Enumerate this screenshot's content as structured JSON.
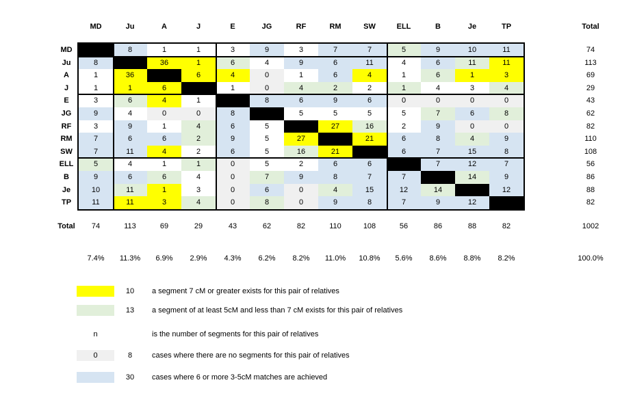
{
  "page": {
    "background": "#ffffff"
  },
  "chart_data": {
    "type": "heatmap",
    "title": "",
    "total_label": "Total",
    "labels": [
      "MD",
      "Ju",
      "A",
      "J",
      "E",
      "JG",
      "RF",
      "RM",
      "SW",
      "ELL",
      "B",
      "Je",
      "TP"
    ],
    "values": [
      [
        "",
        8,
        1,
        1,
        3,
        9,
        3,
        7,
        7,
        5,
        9,
        10,
        11
      ],
      [
        8,
        "",
        36,
        1,
        6,
        4,
        9,
        6,
        11,
        4,
        6,
        11,
        11
      ],
      [
        1,
        36,
        "",
        6,
        4,
        0,
        1,
        6,
        4,
        1,
        6,
        1,
        3
      ],
      [
        1,
        1,
        6,
        "",
        1,
        0,
        4,
        2,
        2,
        1,
        4,
        3,
        4
      ],
      [
        3,
        6,
        4,
        1,
        "",
        8,
        6,
        9,
        6,
        0,
        0,
        0,
        0
      ],
      [
        9,
        4,
        0,
        0,
        8,
        "",
        5,
        5,
        5,
        5,
        7,
        6,
        8
      ],
      [
        3,
        9,
        1,
        4,
        6,
        5,
        "",
        27,
        16,
        2,
        9,
        0,
        0
      ],
      [
        7,
        6,
        6,
        2,
        9,
        5,
        27,
        "",
        21,
        6,
        8,
        4,
        9
      ],
      [
        7,
        11,
        4,
        2,
        6,
        5,
        16,
        21,
        "",
        6,
        7,
        15,
        8
      ],
      [
        5,
        4,
        1,
        1,
        0,
        5,
        2,
        6,
        6,
        "",
        7,
        12,
        7
      ],
      [
        9,
        6,
        6,
        4,
        0,
        7,
        9,
        8,
        7,
        7,
        "",
        14,
        9
      ],
      [
        10,
        11,
        1,
        3,
        0,
        6,
        0,
        4,
        15,
        12,
        14,
        "",
        12
      ],
      [
        11,
        11,
        3,
        4,
        0,
        8,
        0,
        9,
        8,
        7,
        9,
        12,
        ""
      ]
    ],
    "cell_colors": [
      "XBWWWBWBBGBBB",
      "BXYYGWBBBWBGY",
      "WYXYYNWBYWGYY",
      "WYYXWNGGWGWWG",
      "WGYWXBBBBNNNN",
      "BWNNBXWWWWGBG",
      "WBWGBWXYGWBNN",
      "BBBGBWYXYBBGB",
      "BBYWBWGYXBBBB",
      "GWWGNWWBBXBBB",
      "BBGWNGBBBBXGB",
      "BGYWNBNGBBGXB",
      "BYYGNGNBBBBBX"
    ],
    "color_key": {
      "W": "#FFFFFF",
      "Y": "#FFFF00",
      "G": "#E1EFDA",
      "B": "#D6E4F2",
      "N": "#F0F0F0",
      "X": "#000000"
    },
    "row_totals": [
      74,
      113,
      69,
      29,
      43,
      62,
      82,
      110,
      108,
      56,
      86,
      88,
      82
    ],
    "col_totals": [
      74,
      113,
      69,
      29,
      43,
      62,
      82,
      110,
      108,
      56,
      86,
      88,
      82
    ],
    "grand_total": "1002",
    "col_percents": [
      "7.4%",
      "11.3%",
      "6.9%",
      "2.9%",
      "4.3%",
      "6.2%",
      "8.2%",
      "11.0%",
      "10.8%",
      "5.6%",
      "8.6%",
      "8.8%",
      "8.2%"
    ],
    "grand_percent": "100.0%",
    "group_separators_after_rows": [
      0,
      3,
      8
    ],
    "group_separators_after_cols": [
      0,
      3,
      8
    ],
    "legend": [
      {
        "swatch": "Y",
        "swatch_text": "",
        "count": "10",
        "text": "a segment 7 cM or greater exists for this pair of relatives"
      },
      {
        "swatch": "G",
        "swatch_text": "",
        "count": "13",
        "text": "a segment of at least 5cM and less than 7 cM exists for this pair of relatives"
      },
      {
        "swatch": "",
        "swatch_text": "n",
        "count": "",
        "text": "is the number of segments for this pair of relatives"
      },
      {
        "swatch": "N",
        "swatch_text": "0",
        "count": "8",
        "text": "cases where there are no segments for this pair of relatives"
      },
      {
        "swatch": "B",
        "swatch_text": "",
        "count": "30",
        "text": "cases where 6 or more 3-5cM matches are achieved"
      }
    ]
  }
}
